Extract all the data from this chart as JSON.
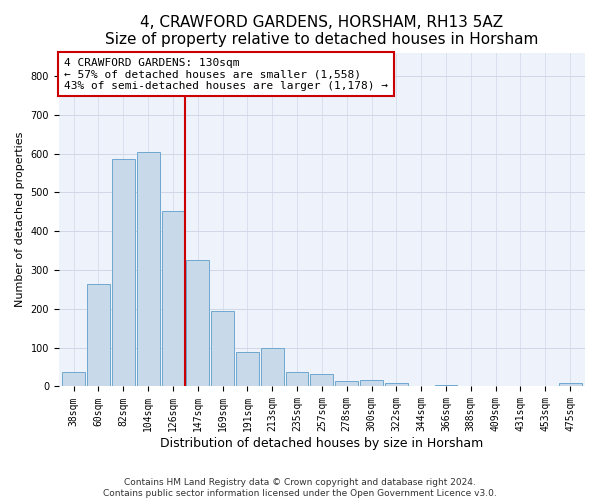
{
  "title": "4, CRAWFORD GARDENS, HORSHAM, RH13 5AZ",
  "subtitle": "Size of property relative to detached houses in Horsham",
  "xlabel": "Distribution of detached houses by size in Horsham",
  "ylabel": "Number of detached properties",
  "bar_labels": [
    "38sqm",
    "60sqm",
    "82sqm",
    "104sqm",
    "126sqm",
    "147sqm",
    "169sqm",
    "191sqm",
    "213sqm",
    "235sqm",
    "257sqm",
    "278sqm",
    "300sqm",
    "322sqm",
    "344sqm",
    "366sqm",
    "388sqm",
    "409sqm",
    "431sqm",
    "453sqm",
    "475sqm"
  ],
  "bar_values": [
    37,
    263,
    585,
    603,
    452,
    327,
    195,
    88,
    100,
    37,
    32,
    14,
    16,
    10,
    0,
    5,
    0,
    0,
    0,
    0,
    8
  ],
  "bar_color": "#c8d9ea",
  "bar_edge_color": "#6fa8d0",
  "vline_x_index": 4.5,
  "vline_color": "#cc0000",
  "annotation_line1": "4 CRAWFORD GARDENS: 130sqm",
  "annotation_line2": "← 57% of detached houses are smaller (1,558)",
  "annotation_line3": "43% of semi-detached houses are larger (1,178) →",
  "annotation_box_color": "#ffffff",
  "annotation_box_edge_color": "#cc0000",
  "ylim": [
    0,
    860
  ],
  "yticks": [
    0,
    100,
    200,
    300,
    400,
    500,
    600,
    700,
    800
  ],
  "grid_color": "#d0d8e8",
  "background_color": "#eef2fa",
  "footer_line1": "Contains HM Land Registry data © Crown copyright and database right 2024.",
  "footer_line2": "Contains public sector information licensed under the Open Government Licence v3.0.",
  "title_fontsize": 11,
  "annotation_fontsize": 8,
  "tick_fontsize": 7,
  "ylabel_fontsize": 8,
  "xlabel_fontsize": 9,
  "footer_fontsize": 6.5
}
